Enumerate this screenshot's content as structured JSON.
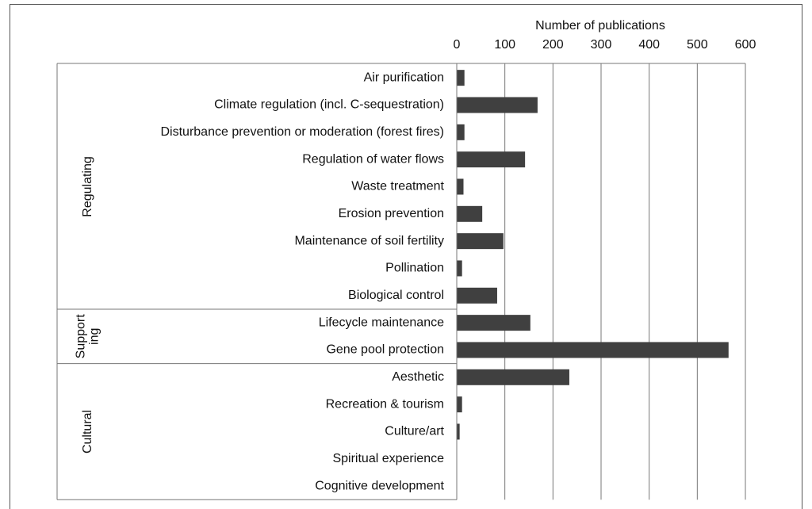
{
  "chart_data": {
    "type": "bar",
    "orientation": "horizontal",
    "xlabel": "Number of publications",
    "xlim": [
      0,
      600
    ],
    "xticks": [
      0,
      100,
      200,
      300,
      400,
      500,
      600
    ],
    "grid": true,
    "color": "#404040",
    "groups": [
      {
        "label": [
          "Regulating"
        ],
        "categories": [
          "Air purification",
          "Climate regulation (incl. C-sequestration)",
          "Disturbance prevention or moderation (forest fires)",
          "Regulation of water flows",
          "Waste treatment",
          "Erosion prevention",
          "Maintenance of soil fertility",
          "Pollination",
          "Biological control"
        ],
        "values": [
          16,
          168,
          16,
          142,
          14,
          53,
          97,
          11,
          84
        ]
      },
      {
        "label": [
          "Support",
          "ing"
        ],
        "categories": [
          "Lifecycle maintenance",
          "Gene pool protection"
        ],
        "values": [
          153,
          565
        ]
      },
      {
        "label": [
          "Cultural"
        ],
        "categories": [
          "Aesthetic",
          "Recreation & tourism",
          "Culture/art",
          "Spiritual experience",
          "Cognitive development"
        ],
        "values": [
          234,
          11,
          6,
          0,
          0
        ]
      }
    ]
  }
}
